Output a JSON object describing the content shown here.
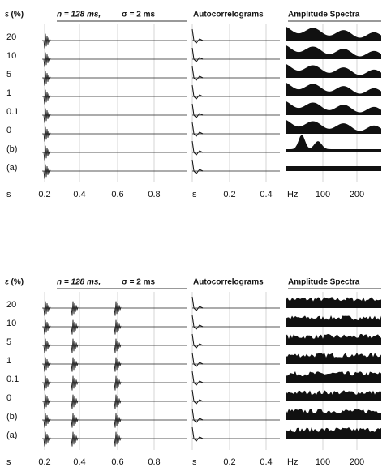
{
  "panels": [
    {
      "epsilon_label": "ε (%)",
      "n_label": "n = 128 ms,",
      "sigma_label": "σ = 2 ms",
      "autocorr_title": "Autocorrelograms",
      "spectra_title": "Amplitude Spectra",
      "rows": [
        "20",
        "10",
        "5",
        "1",
        "0.1",
        "0",
        "(b)",
        "(a)"
      ],
      "time_ticks": [
        "s",
        "0.2",
        "0.4",
        "0.6",
        "0.8"
      ],
      "lag_ticks": [
        "s",
        "0.2",
        "0.4"
      ],
      "freq_ticks": [
        "Hz",
        "100",
        "200"
      ]
    },
    {
      "epsilon_label": "ε (%)",
      "n_label": "n = 128 ms,",
      "sigma_label": "σ = 2 ms",
      "autocorr_title": "Autocorrelograms",
      "spectra_title": "Amplitude Spectra",
      "rows": [
        "20",
        "10",
        "5",
        "1",
        "0.1",
        "0",
        "(b)",
        "(a)"
      ],
      "time_ticks": [
        "s",
        "0.2",
        "0.4",
        "0.6",
        "0.8"
      ],
      "lag_ticks": [
        "s",
        "0.2",
        "0.4"
      ],
      "freq_ticks": [
        "Hz",
        "100",
        "200"
      ]
    }
  ]
}
